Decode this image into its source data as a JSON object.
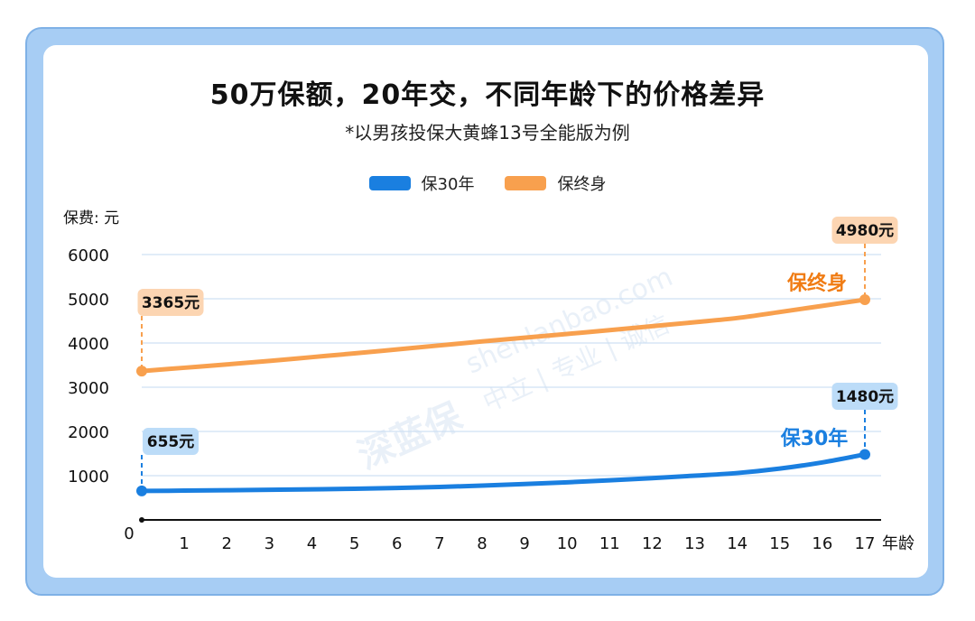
{
  "title": "50万保额，20年交，不同年龄下的价格差异",
  "subtitle": "*以男孩投保大黄蜂13号全能版为例",
  "watermark": {
    "logo": "深蓝保",
    "url": "shenlanbao.com",
    "tagline": "中立 | 专业 | 诚信"
  },
  "chart_data": {
    "type": "line",
    "ylabel": "保费: 元",
    "xlabel": "年龄",
    "ylim": [
      0,
      6000
    ],
    "yticks": [
      6000,
      5000,
      4000,
      3000,
      2000,
      1000
    ],
    "y_zero_label": "0",
    "x": [
      0,
      1,
      2,
      3,
      4,
      5,
      6,
      7,
      8,
      9,
      10,
      11,
      12,
      13,
      14,
      15,
      16,
      17
    ],
    "xtick_labels": [
      "1",
      "2",
      "3",
      "4",
      "5",
      "6",
      "7",
      "8",
      "9",
      "10",
      "11",
      "12",
      "13",
      "14",
      "15",
      "16",
      "17"
    ],
    "grid": true,
    "legend_position": "top-center",
    "series": [
      {
        "name": "保30年",
        "color": "#1a7fe0",
        "label_bg": "#bcdcf8",
        "values": [
          655,
          662,
          670,
          680,
          692,
          705,
          722,
          745,
          775,
          810,
          850,
          895,
          945,
          1000,
          1060,
          1160,
          1300,
          1480
        ],
        "start_label": "655元",
        "end_label": "1480元",
        "inline_label": "保30年"
      },
      {
        "name": "保终身",
        "color": "#f8a04e",
        "label_bg": "#fcd5b2",
        "values": [
          3365,
          3440,
          3515,
          3595,
          3680,
          3765,
          3855,
          3945,
          4035,
          4120,
          4205,
          4290,
          4380,
          4470,
          4565,
          4700,
          4840,
          4980
        ],
        "start_label": "3365元",
        "end_label": "4980元",
        "inline_label": "保终身",
        "inline_color": "#f07c14"
      }
    ]
  }
}
